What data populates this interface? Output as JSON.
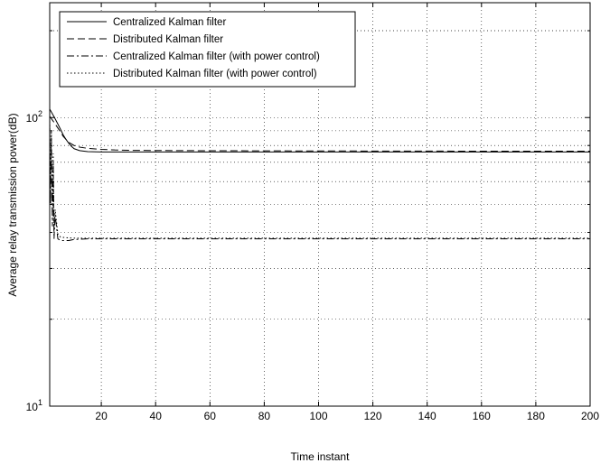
{
  "chart_data": {
    "type": "line",
    "title": "",
    "xlabel": "Time instant",
    "ylabel": "Average relay transmission power(dB)",
    "xlim": [
      1,
      200
    ],
    "ylim": [
      10,
      250
    ],
    "yscale": "log",
    "grid": true,
    "legend_position": "top-left",
    "x_ticks": [
      20,
      40,
      60,
      80,
      100,
      120,
      140,
      160,
      180,
      200
    ],
    "x_tick_labels": [
      "20",
      "40",
      "60",
      "80",
      "100",
      "120",
      "140",
      "160",
      "180",
      "200"
    ],
    "y_ticks": [
      10,
      100
    ],
    "y_tick_labels": [
      {
        "base": "10",
        "exp": "1"
      },
      {
        "base": "10",
        "exp": "2"
      }
    ],
    "series": [
      {
        "name": "Centralized Kalman filter",
        "dash": "solid",
        "x": [
          1,
          2,
          3,
          4,
          5,
          6,
          7,
          8,
          9,
          10,
          12,
          15,
          20,
          30,
          50,
          100,
          150,
          200
        ],
        "y": [
          107,
          103,
          99,
          95,
          91,
          87,
          84,
          81.5,
          79.5,
          78,
          76.8,
          76.2,
          76,
          76,
          76,
          76,
          76,
          76
        ]
      },
      {
        "name": "Distributed Kalman filter",
        "dash": "dashed",
        "x": [
          1,
          2,
          3,
          4,
          5,
          6,
          7,
          8,
          10,
          12,
          15,
          20,
          25,
          30,
          50,
          100,
          150,
          200
        ],
        "y": [
          101,
          98,
          95,
          92,
          89,
          86,
          84,
          82,
          80,
          79,
          78.2,
          77.6,
          77.2,
          77,
          76.8,
          76.6,
          76.5,
          76.5
        ]
      },
      {
        "name": "Centralized Kalman filter (with power control)",
        "dash": "dashdot",
        "x": [
          1,
          1.3,
          1.6,
          2,
          2.3,
          2.6,
          3,
          4,
          5,
          8,
          10,
          15,
          20,
          50,
          100,
          150,
          200
        ],
        "y": [
          95,
          50,
          85,
          42,
          70,
          38,
          46,
          38,
          37.5,
          37.5,
          37.8,
          38,
          38,
          38,
          38,
          38,
          38
        ]
      },
      {
        "name": "Distributed Kalman filter (with power control)",
        "dash": "dotted",
        "x": [
          1,
          1.3,
          1.6,
          2,
          2.3,
          2.6,
          3,
          4,
          5,
          8,
          10,
          15,
          20,
          50,
          100,
          150,
          200
        ],
        "y": [
          100,
          55,
          90,
          44,
          75,
          40,
          48,
          39.5,
          38.5,
          38.3,
          38.2,
          38.2,
          38.2,
          38.2,
          38.2,
          38.2,
          38.2
        ]
      }
    ]
  }
}
